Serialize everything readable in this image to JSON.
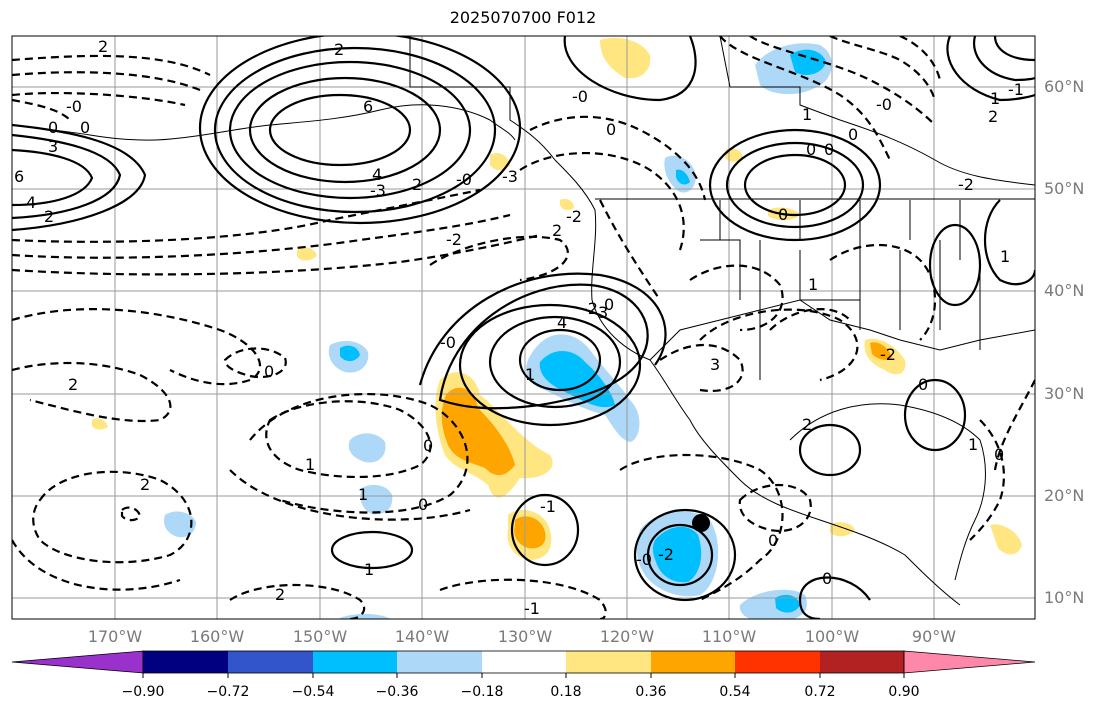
{
  "title": "2025070700 F012",
  "lat_labels": [
    "60°N",
    "50°N",
    "40°N",
    "30°N",
    "20°N",
    "10°N"
  ],
  "lon_labels": [
    "170°W",
    "160°W",
    "150°W",
    "140°W",
    "130°W",
    "120°W",
    "110°W",
    "100°W",
    "90°W"
  ],
  "colorbar": {
    "ticks": [
      "−0.90",
      "−0.72",
      "−0.54",
      "−0.36",
      "−0.18",
      "0.18",
      "0.36",
      "0.54",
      "0.72",
      "0.90"
    ],
    "colors": [
      "#9932cc",
      "#000080",
      "#3355cc",
      "#00bfff",
      "#add8f7",
      "#ffffff",
      "#ffe680",
      "#ffa500",
      "#ff3300",
      "#b22222",
      "#ff88aa"
    ]
  },
  "contour_labels": [
    "2",
    "2",
    "6",
    "0",
    "0",
    "-0",
    "3",
    "4",
    "-3",
    "6",
    "4",
    "2",
    "2",
    "-2",
    "2",
    "-2",
    "-3",
    "4",
    "-2",
    "3",
    "-0",
    "0",
    "2",
    "1",
    "0",
    "1",
    "2",
    "1",
    "0",
    "-1",
    "1",
    "2",
    "-1",
    "-0",
    "-2",
    "3",
    "0",
    "0",
    "2",
    "1",
    "0",
    "0",
    "-2",
    "-2",
    "0",
    "1",
    "0",
    "0",
    "0",
    "1",
    "-0",
    "2",
    "-1",
    "1",
    "-0",
    "0",
    "-0",
    "1",
    "0"
  ],
  "marker": "black-dot"
}
